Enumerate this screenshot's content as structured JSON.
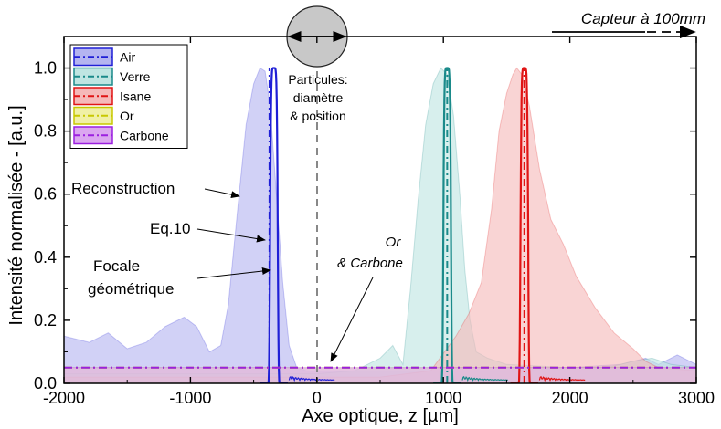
{
  "chart_data": {
    "type": "area",
    "xlabel": "Axe optique, z  [µm]",
    "ylabel": "Intensité normalisée - [a.u.]",
    "xlim": [
      -2000,
      3000
    ],
    "ylim": [
      0,
      1.1
    ],
    "x_ticks": [
      -2000,
      -1000,
      0,
      1000,
      2000,
      3000
    ],
    "y_ticks": [
      0.0,
      0.2,
      0.4,
      0.6,
      0.8,
      1.0
    ],
    "x_tick_labels": [
      "-2000",
      "-1000",
      "0",
      "1000",
      "2000",
      "3000"
    ],
    "y_tick_labels": [
      "0.0",
      "0.2",
      "0.4",
      "0.6",
      "0.8",
      "1.0"
    ],
    "legend_position": "top-left",
    "series": [
      {
        "name": "Air",
        "color": "#1f1fd6",
        "fill": "#b4b4f0",
        "reconstruction": [
          [
            -2000,
            0.15
          ],
          [
            -1800,
            0.13
          ],
          [
            -1650,
            0.16
          ],
          [
            -1500,
            0.11
          ],
          [
            -1350,
            0.13
          ],
          [
            -1200,
            0.18
          ],
          [
            -1050,
            0.21
          ],
          [
            -950,
            0.18
          ],
          [
            -850,
            0.1
          ],
          [
            -760,
            0.12
          ],
          [
            -700,
            0.25
          ],
          [
            -620,
            0.58
          ],
          [
            -560,
            0.82
          ],
          [
            -500,
            0.95
          ],
          [
            -450,
            1.0
          ],
          [
            -410,
            0.99
          ],
          [
            -370,
            0.88
          ],
          [
            -320,
            0.6
          ],
          [
            -270,
            0.32
          ],
          [
            -220,
            0.12
          ],
          [
            -160,
            0.05
          ],
          [
            -80,
            0.04
          ],
          [
            0,
            0.04
          ],
          [
            200,
            0.04
          ],
          [
            500,
            0.04
          ],
          [
            1000,
            0.04
          ],
          [
            1500,
            0.04
          ],
          [
            2000,
            0.05
          ],
          [
            2400,
            0.06
          ],
          [
            2600,
            0.08
          ],
          [
            2700,
            0.06
          ],
          [
            2850,
            0.09
          ],
          [
            3000,
            0.06
          ]
        ],
        "eq10_center": -340,
        "focale_geometrique": -375
      },
      {
        "name": "Verre",
        "color": "#1a8a8a",
        "fill": "#bfe5e2",
        "reconstruction": [
          [
            -2000,
            0.03
          ],
          [
            0,
            0.03
          ],
          [
            300,
            0.04
          ],
          [
            500,
            0.08
          ],
          [
            600,
            0.12
          ],
          [
            680,
            0.06
          ],
          [
            740,
            0.3
          ],
          [
            800,
            0.58
          ],
          [
            860,
            0.82
          ],
          [
            920,
            0.95
          ],
          [
            980,
            1.0
          ],
          [
            1030,
            0.98
          ],
          [
            1080,
            0.85
          ],
          [
            1130,
            0.6
          ],
          [
            1170,
            0.36
          ],
          [
            1210,
            0.2
          ],
          [
            1260,
            0.1
          ],
          [
            1350,
            0.08
          ],
          [
            1500,
            0.06
          ],
          [
            2000,
            0.05
          ],
          [
            2300,
            0.05
          ],
          [
            2500,
            0.07
          ],
          [
            2650,
            0.08
          ],
          [
            2800,
            0.06
          ],
          [
            3000,
            0.05
          ]
        ],
        "eq10_center": 1030,
        "focale_geometrique": 1030
      },
      {
        "name": "Isane",
        "color": "#e01414",
        "fill": "#f5b9b9",
        "reconstruction": [
          [
            -2000,
            0.02
          ],
          [
            500,
            0.02
          ],
          [
            900,
            0.04
          ],
          [
            1100,
            0.15
          ],
          [
            1200,
            0.22
          ],
          [
            1300,
            0.32
          ],
          [
            1380,
            0.55
          ],
          [
            1440,
            0.8
          ],
          [
            1500,
            0.92
          ],
          [
            1550,
            0.98
          ],
          [
            1580,
            1.0
          ],
          [
            1620,
            0.98
          ],
          [
            1680,
            0.88
          ],
          [
            1760,
            0.68
          ],
          [
            1850,
            0.52
          ],
          [
            1950,
            0.44
          ],
          [
            2050,
            0.34
          ],
          [
            2200,
            0.24
          ],
          [
            2350,
            0.16
          ],
          [
            2500,
            0.11
          ],
          [
            2600,
            0.07
          ],
          [
            2700,
            0.05
          ],
          [
            3000,
            0.04
          ]
        ],
        "eq10_center": 1640,
        "focale_geometrique": 1640
      },
      {
        "name": "Or",
        "color": "#c8c800",
        "fill": "#f0f0a6",
        "reconstruction": [
          [
            -2000,
            0.05
          ],
          [
            3000,
            0.05
          ]
        ],
        "level": 0.05
      },
      {
        "name": "Carbone",
        "color": "#9b1fe0",
        "fill": "#dba6f0",
        "reconstruction": [
          [
            -2000,
            0.05
          ],
          [
            3000,
            0.05
          ]
        ],
        "level": 0.05
      }
    ],
    "annotations": {
      "top_arrow_label": "Capteur à 100mm",
      "particle_label": [
        "Particules:",
        "diamètre",
        "& position"
      ],
      "reconstruction": "Reconstruction",
      "eq10": "Eq.10",
      "focale": [
        "Focale",
        "géométrique"
      ],
      "or_carbone": [
        "Or",
        "& Carbone"
      ]
    }
  }
}
